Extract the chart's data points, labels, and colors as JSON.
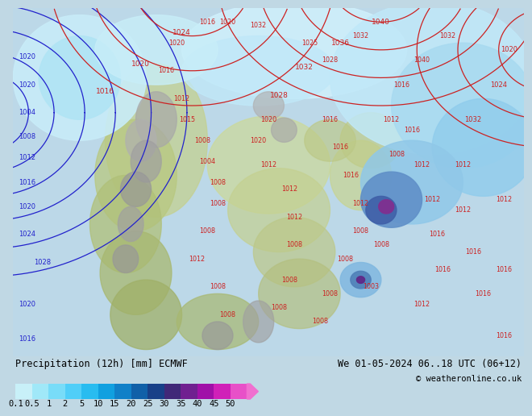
{
  "title_left": "Precipitation (12h) [mm] ECMWF",
  "title_right": "We 01-05-2024 06..18 UTC (06+12)",
  "copyright": "© weatheronline.co.uk",
  "colorbar_levels": [
    "0.1",
    "0.5",
    "1",
    "2",
    "5",
    "10",
    "15",
    "20",
    "25",
    "30",
    "35",
    "40",
    "45",
    "50"
  ],
  "colorbar_colors": [
    "#c8f0f8",
    "#a0e8f8",
    "#78dcf8",
    "#50cef8",
    "#28bcf0",
    "#10a0e0",
    "#1080c8",
    "#1060a8",
    "#184088",
    "#402878",
    "#702090",
    "#a010a8",
    "#d020b8",
    "#e850c8",
    "#f070d0"
  ],
  "map_ocean_color": "#c0dce8",
  "map_light_precip": "#d0eef8",
  "info_bar_color": "#ffffff",
  "title_fontsize": 8.5,
  "cb_fontsize": 7.5
}
